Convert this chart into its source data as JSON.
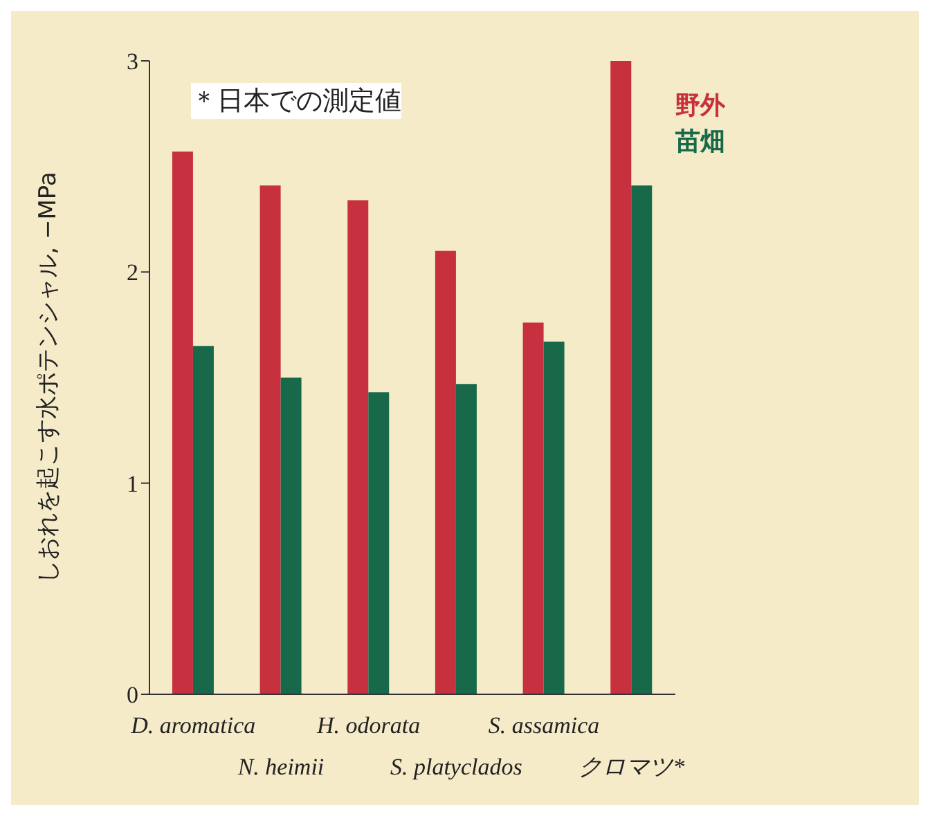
{
  "chart_data": {
    "type": "bar",
    "ylabel": "しおれを起こす水ポテンシャル, −MPa",
    "annotations": [
      "＊日本での測定値"
    ],
    "categories": [
      "D. aromatica",
      "N. heimii",
      "H. odorata",
      "S. platyclados",
      "S. assamica",
      "クロマツ*"
    ],
    "series": [
      {
        "name": "野外",
        "color": "#c7303f",
        "values": [
          2.57,
          2.41,
          2.34,
          2.1,
          1.76,
          3.0
        ]
      },
      {
        "name": "苗畑",
        "color": "#17694a",
        "values": [
          1.65,
          1.5,
          1.43,
          1.47,
          1.67,
          2.41
        ]
      }
    ],
    "ylim": [
      0,
      3
    ],
    "yticks": [
      0,
      1,
      2,
      3
    ],
    "legend": "top right"
  }
}
